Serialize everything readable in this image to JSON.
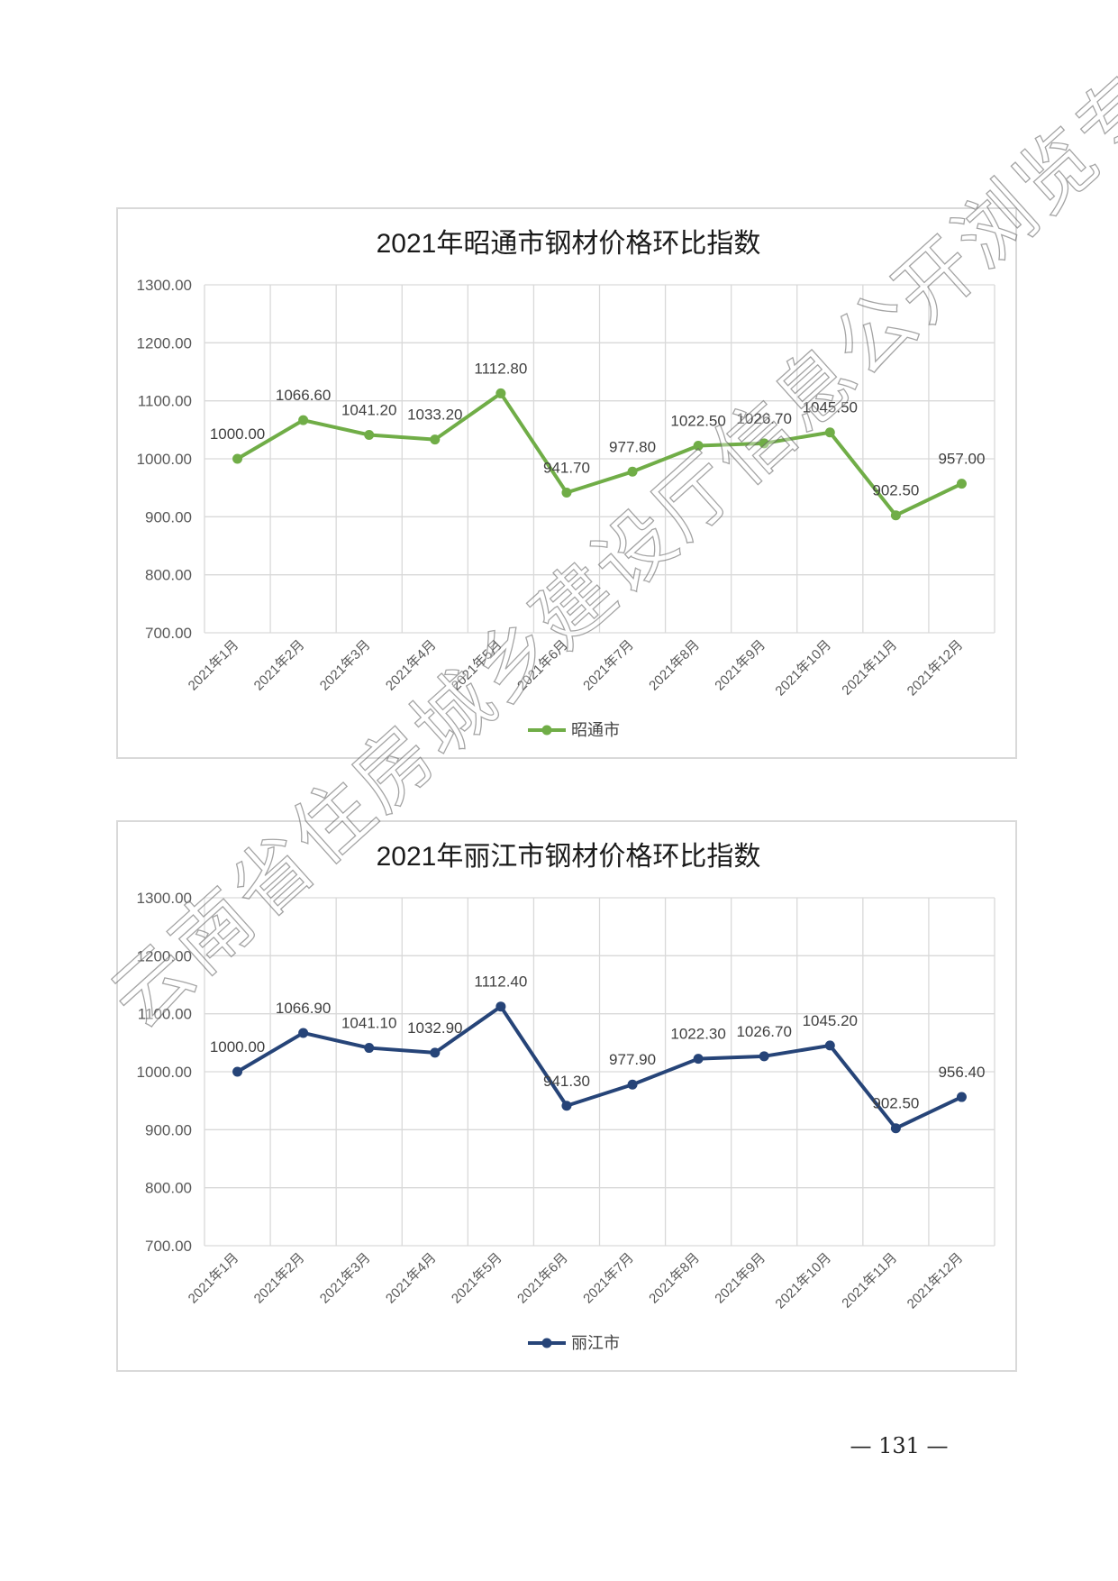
{
  "page": {
    "number": "131",
    "number_text": "— 131 —"
  },
  "watermark": {
    "text": "云南省住房城乡建设厅信息公开浏览专用"
  },
  "chart_data": [
    {
      "type": "line",
      "title": "2021年昭通市钢材价格环比指数",
      "categories": [
        "2021年1月",
        "2021年2月",
        "2021年3月",
        "2021年4月",
        "2021年5月",
        "2021年6月",
        "2021年7月",
        "2021年8月",
        "2021年9月",
        "2021年10月",
        "2021年11月",
        "2021年12月"
      ],
      "series": [
        {
          "name": "昭通市",
          "color": "#70ad47",
          "values": [
            1000.0,
            1066.6,
            1041.2,
            1033.2,
            1112.8,
            941.7,
            977.8,
            1022.5,
            1026.7,
            1045.5,
            902.5,
            957.0
          ],
          "labels": [
            "1000.00",
            "1066.60",
            "1041.20",
            "1033.20",
            "1112.80",
            "941.70",
            "977.80",
            "1022.50",
            "1026.70",
            "1045.50",
            "902.50",
            "957.00"
          ]
        }
      ],
      "ylim": [
        700,
        1300
      ],
      "yticks": [
        "700.00",
        "800.00",
        "900.00",
        "1000.00",
        "1100.00",
        "1200.00",
        "1300.00"
      ],
      "xlabel": "",
      "ylabel": "",
      "grid": true,
      "legend_position": "bottom"
    },
    {
      "type": "line",
      "title": "2021年丽江市钢材价格环比指数",
      "categories": [
        "2021年1月",
        "2021年2月",
        "2021年3月",
        "2021年4月",
        "2021年5月",
        "2021年6月",
        "2021年7月",
        "2021年8月",
        "2021年9月",
        "2021年10月",
        "2021年11月",
        "2021年12月"
      ],
      "series": [
        {
          "name": "丽江市",
          "color": "#264478",
          "values": [
            1000.0,
            1066.9,
            1041.1,
            1032.9,
            1112.4,
            941.3,
            977.9,
            1022.3,
            1026.7,
            1045.2,
            902.5,
            956.4
          ],
          "labels": [
            "1000.00",
            "1066.90",
            "1041.10",
            "1032.90",
            "1112.40",
            "941.30",
            "977.90",
            "1022.30",
            "1026.70",
            "1045.20",
            "902.50",
            "956.40"
          ]
        }
      ],
      "ylim": [
        700,
        1300
      ],
      "yticks": [
        "700.00",
        "800.00",
        "900.00",
        "1000.00",
        "1100.00",
        "1200.00",
        "1300.00"
      ],
      "xlabel": "",
      "ylabel": "",
      "grid": true,
      "legend_position": "bottom"
    }
  ]
}
